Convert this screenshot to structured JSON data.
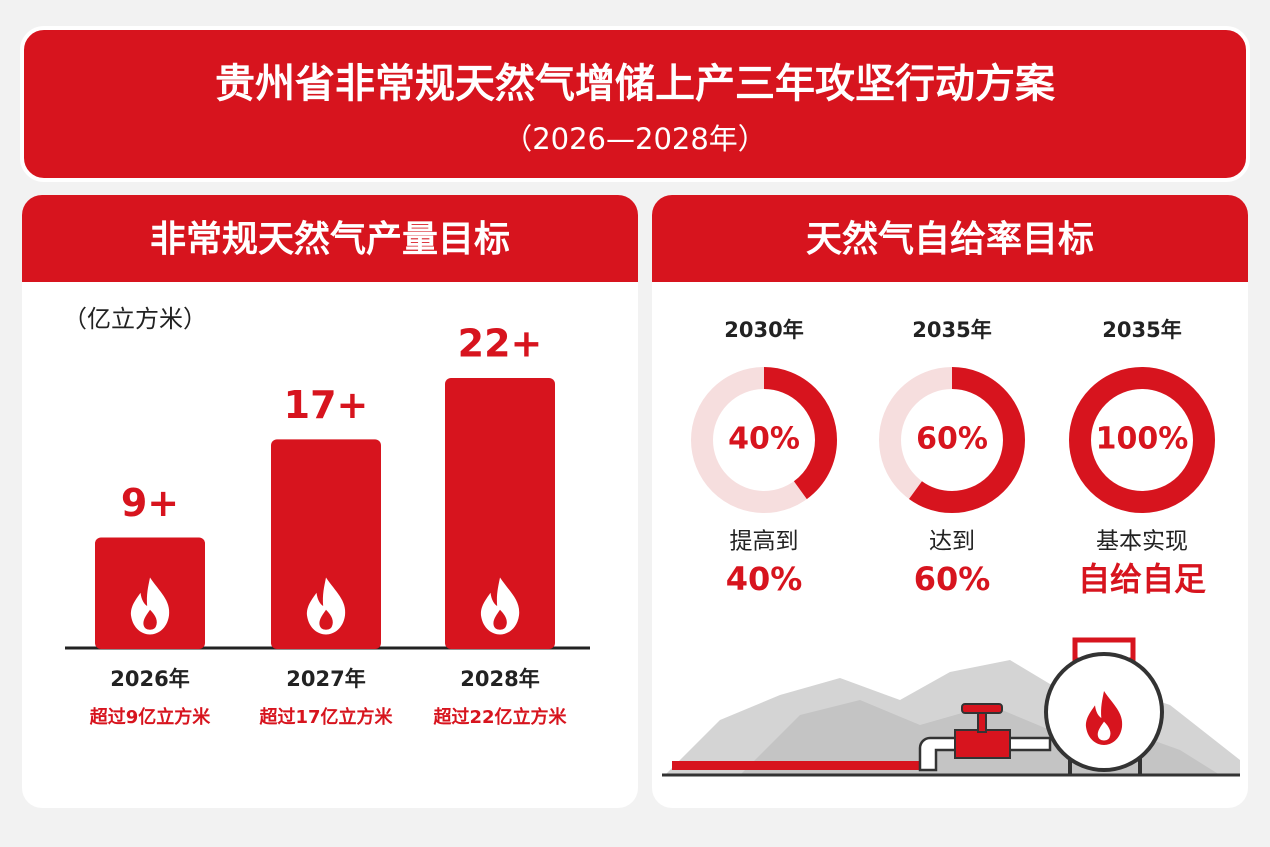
{
  "header": {
    "title": "贵州省非常规天然气增储上产三年攻坚行动方案",
    "subtitle": "（2026—2028年）"
  },
  "chart_data": [
    {
      "type": "bar",
      "title": "非常规天然气产量目标",
      "unit": "（亿立方米）",
      "categories": [
        "2026年",
        "2027年",
        "2028年"
      ],
      "values": [
        9,
        17,
        22
      ],
      "value_labels": [
        "9+",
        "17+",
        "22+"
      ],
      "notes": [
        "超过9亿立方米",
        "超过17亿立方米",
        "超过22亿立方米"
      ],
      "color": "#d7141e"
    },
    {
      "type": "donut",
      "title": "天然气自给率目标",
      "categories": [
        "2030年",
        "2035年",
        "2035年"
      ],
      "values": [
        40,
        60,
        100
      ],
      "value_labels": [
        "40%",
        "60%",
        "100%"
      ],
      "captions": [
        "提高到",
        "达到",
        "基本实现"
      ],
      "highlights": [
        "40%",
        "60%",
        "自给自足"
      ],
      "color": "#d7141e"
    }
  ]
}
